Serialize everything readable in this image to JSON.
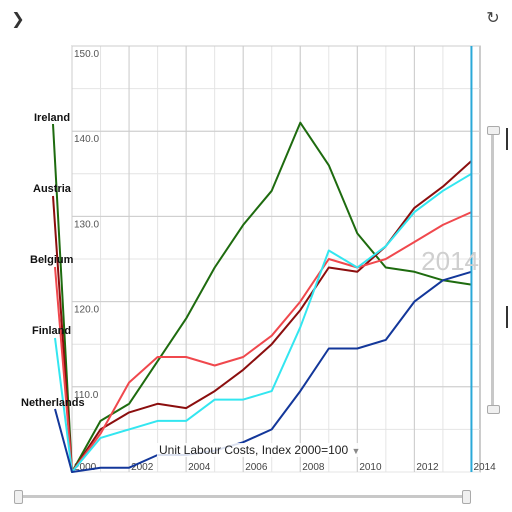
{
  "controls": {
    "expand_icon": "chevron-right-icon",
    "expand_glyph": "❯",
    "reset_icon": "reset-icon",
    "reset_glyph": "↻"
  },
  "indicator": {
    "label": "Unit Labour Costs, Index 2000=100",
    "caret": "▼"
  },
  "time_marker": {
    "year_label": "2014"
  },
  "country_labels": [
    "Ireland",
    "Austria",
    "Belgium",
    "Finland",
    "Netherlands"
  ],
  "chart_data": {
    "type": "line",
    "title": "",
    "xlabel": "",
    "ylabel": "",
    "x": [
      2000,
      2001,
      2002,
      2003,
      2004,
      2005,
      2006,
      2007,
      2008,
      2009,
      2010,
      2011,
      2012,
      2013,
      2014
    ],
    "xlim": [
      2000,
      2014.3
    ],
    "ylim": [
      100,
      150
    ],
    "x_ticks": [
      2000,
      2002,
      2004,
      2006,
      2008,
      2010,
      2012,
      2014
    ],
    "x_tick_labels": [
      "2000",
      "2002",
      "2004",
      "2006",
      "2008",
      "2010",
      "2012",
      "2014"
    ],
    "y_ticks": [
      110,
      120,
      130,
      140,
      150
    ],
    "y_tick_labels": [
      "110.0",
      "120.0",
      "130.0",
      "140.0",
      "150.0"
    ],
    "grid": true,
    "series": [
      {
        "name": "Ireland",
        "color": "#1e6b0f",
        "values": [
          100,
          106,
          108,
          113,
          118,
          124,
          129,
          133,
          141,
          136,
          128,
          124,
          123.5,
          122.5,
          122
        ]
      },
      {
        "name": "Austria",
        "color": "#8b0e0e",
        "values": [
          100,
          105,
          107,
          108,
          107.5,
          109.5,
          112,
          115,
          119,
          124,
          123.5,
          126.5,
          131,
          133.5,
          136.5
        ]
      },
      {
        "name": "Belgium",
        "color": "#f0484d",
        "values": [
          100,
          104.5,
          110.5,
          113.5,
          113.5,
          112.5,
          113.5,
          116,
          120,
          125,
          124,
          125,
          127,
          129,
          130.5
        ]
      },
      {
        "name": "Finland",
        "color": "#33e6f0",
        "values": [
          100,
          104,
          105,
          106,
          106,
          108.5,
          108.5,
          109.5,
          117,
          126,
          124,
          126.5,
          130.5,
          133,
          135
        ]
      },
      {
        "name": "Netherlands",
        "color": "#13379a",
        "values": [
          100,
          100.5,
          100.5,
          102,
          102,
          102.5,
          103.5,
          105,
          109.5,
          114.5,
          114.5,
          115.5,
          120,
          122.5,
          123.5
        ]
      }
    ]
  }
}
